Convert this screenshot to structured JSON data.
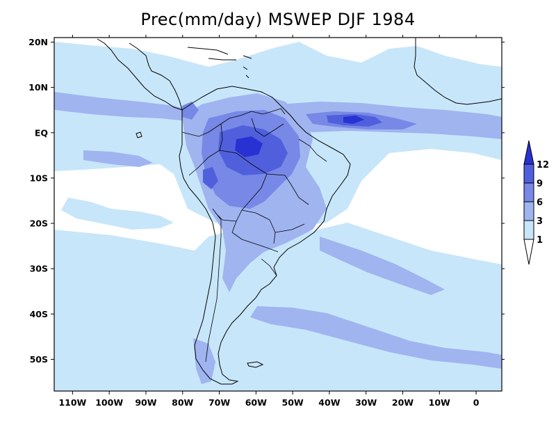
{
  "map": {
    "title": "Prec(mm/day) MSWEP DJF 1984",
    "lon_range": [
      -115,
      7
    ],
    "lat_range": [
      -57,
      21
    ],
    "lon_ticks": [
      {
        "value": -110,
        "label": "110W"
      },
      {
        "value": -100,
        "label": "100W"
      },
      {
        "value": -90,
        "label": "90W"
      },
      {
        "value": -80,
        "label": "80W"
      },
      {
        "value": -70,
        "label": "70W"
      },
      {
        "value": -60,
        "label": "60W"
      },
      {
        "value": -50,
        "label": "50W"
      },
      {
        "value": -40,
        "label": "40W"
      },
      {
        "value": -30,
        "label": "30W"
      },
      {
        "value": -20,
        "label": "20W"
      },
      {
        "value": -10,
        "label": "10W"
      },
      {
        "value": 0,
        "label": "0"
      }
    ],
    "lat_ticks": [
      {
        "value": 20,
        "label": "20N"
      },
      {
        "value": 10,
        "label": "10N"
      },
      {
        "value": 0,
        "label": "EQ"
      },
      {
        "value": -10,
        "label": "10S"
      },
      {
        "value": -20,
        "label": "20S"
      },
      {
        "value": -30,
        "label": "30S"
      },
      {
        "value": -40,
        "label": "40S"
      },
      {
        "value": -50,
        "label": "50S"
      }
    ],
    "colorbar": {
      "levels": [
        {
          "label": "1",
          "color": "#ffffff"
        },
        {
          "label": "3",
          "color": "#c8e6fa"
        },
        {
          "label": "6",
          "color": "#a0b4f0"
        },
        {
          "label": "9",
          "color": "#7888e6"
        },
        {
          "label": "12",
          "color": "#5060dc"
        }
      ],
      "top_color": "#2832d2",
      "bottom_color": "#ffffff"
    },
    "colors": {
      "c1": "#c8e6fa",
      "c2": "#a0b4f0",
      "c3": "#7888e6",
      "c4": "#5060dc",
      "c5": "#2832d2",
      "coast": "#000000"
    }
  }
}
